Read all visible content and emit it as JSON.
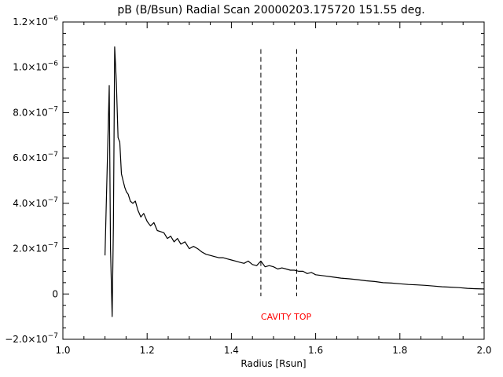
{
  "chart_data": {
    "type": "line",
    "title": "pB (B/Bsun) Radial Scan 20000203.175720 151.55 deg.",
    "xlabel": "Radius [Rsun]",
    "ylabel": "",
    "xlim": [
      1.0,
      2.0
    ],
    "ylim": [
      -2e-07,
      1.2e-06
    ],
    "grid": false,
    "x_ticks": [
      {
        "value": 1.0,
        "label": "1.0"
      },
      {
        "value": 1.2,
        "label": "1.2"
      },
      {
        "value": 1.4,
        "label": "1.4"
      },
      {
        "value": 1.6,
        "label": "1.6"
      },
      {
        "value": 1.8,
        "label": "1.8"
      },
      {
        "value": 2.0,
        "label": "2.0"
      }
    ],
    "y_ticks": [
      {
        "value": -2e-07,
        "mantissa": "−2.0×10",
        "exp": "−7",
        "plain": ""
      },
      {
        "value": 0,
        "mantissa": "",
        "exp": "",
        "plain": "0"
      },
      {
        "value": 2e-07,
        "mantissa": "2.0×10",
        "exp": "−7",
        "plain": ""
      },
      {
        "value": 4e-07,
        "mantissa": "4.0×10",
        "exp": "−7",
        "plain": ""
      },
      {
        "value": 6e-07,
        "mantissa": "6.0×10",
        "exp": "−7",
        "plain": ""
      },
      {
        "value": 8e-07,
        "mantissa": "8.0×10",
        "exp": "−7",
        "plain": ""
      },
      {
        "value": 1e-06,
        "mantissa": "1.0×10",
        "exp": "−6",
        "plain": ""
      },
      {
        "value": 1.2e-06,
        "mantissa": "1.2×10",
        "exp": "−6",
        "plain": ""
      }
    ],
    "series": [
      {
        "color": "#000000",
        "x": [
          1.1,
          1.11,
          1.113,
          1.117,
          1.12,
          1.123,
          1.127,
          1.131,
          1.135,
          1.139,
          1.143,
          1.147,
          1.151,
          1.155,
          1.16,
          1.166,
          1.172,
          1.178,
          1.185,
          1.192,
          1.2,
          1.208,
          1.216,
          1.224,
          1.232,
          1.24,
          1.248,
          1.256,
          1.264,
          1.272,
          1.28,
          1.29,
          1.3,
          1.31,
          1.32,
          1.33,
          1.34,
          1.35,
          1.36,
          1.37,
          1.38,
          1.39,
          1.4,
          1.41,
          1.42,
          1.43,
          1.44,
          1.45,
          1.46,
          1.47,
          1.48,
          1.49,
          1.5,
          1.51,
          1.52,
          1.53,
          1.54,
          1.55,
          1.56,
          1.57,
          1.58,
          1.59,
          1.6,
          1.62,
          1.64,
          1.66,
          1.68,
          1.7,
          1.72,
          1.74,
          1.76,
          1.78,
          1.8,
          1.82,
          1.84,
          1.86,
          1.88,
          1.9,
          1.92,
          1.94,
          1.96,
          1.98,
          2.0
        ],
        "y": [
          1.7e-07,
          9.2e-07,
          2e-07,
          -1e-07,
          3e-07,
          1.09e-06,
          9.3e-07,
          6.9e-07,
          6.7e-07,
          5.3e-07,
          5e-07,
          4.7e-07,
          4.5e-07,
          4.4e-07,
          4.1e-07,
          4e-07,
          4.1e-07,
          3.7e-07,
          3.4e-07,
          3.55e-07,
          3.2e-07,
          3e-07,
          3.15e-07,
          2.8e-07,
          2.75e-07,
          2.7e-07,
          2.45e-07,
          2.55e-07,
          2.3e-07,
          2.45e-07,
          2.2e-07,
          2.3e-07,
          2e-07,
          2.1e-07,
          2e-07,
          1.85e-07,
          1.75e-07,
          1.7e-07,
          1.65e-07,
          1.6e-07,
          1.6e-07,
          1.55e-07,
          1.5e-07,
          1.45e-07,
          1.4e-07,
          1.35e-07,
          1.45e-07,
          1.3e-07,
          1.25e-07,
          1.45e-07,
          1.2e-07,
          1.25e-07,
          1.2e-07,
          1.1e-07,
          1.15e-07,
          1.1e-07,
          1.05e-07,
          1.05e-07,
          1e-07,
          1e-07,
          9e-08,
          9.5e-08,
          8.5e-08,
          8e-08,
          7.5e-08,
          7e-08,
          6.7e-08,
          6.3e-08,
          5.8e-08,
          5.5e-08,
          5e-08,
          4.8e-08,
          4.5e-08,
          4.2e-08,
          4e-08,
          3.8e-08,
          3.5e-08,
          3.2e-08,
          3e-08,
          2.8e-08,
          2.5e-08,
          2.3e-08,
          2.2e-08
        ]
      }
    ],
    "vlines": [
      {
        "x": 1.47,
        "ytop": 1.08e-06,
        "ybottom": -1e-08,
        "style": "dashed",
        "color": "#000000"
      },
      {
        "x": 1.555,
        "ytop": 1.08e-06,
        "ybottom": -1e-08,
        "style": "dashed",
        "color": "#000000"
      }
    ],
    "annotations": [
      {
        "text": "CAVITY TOP",
        "x": 1.47,
        "y": -1e-07,
        "color": "#ff0000"
      }
    ]
  }
}
